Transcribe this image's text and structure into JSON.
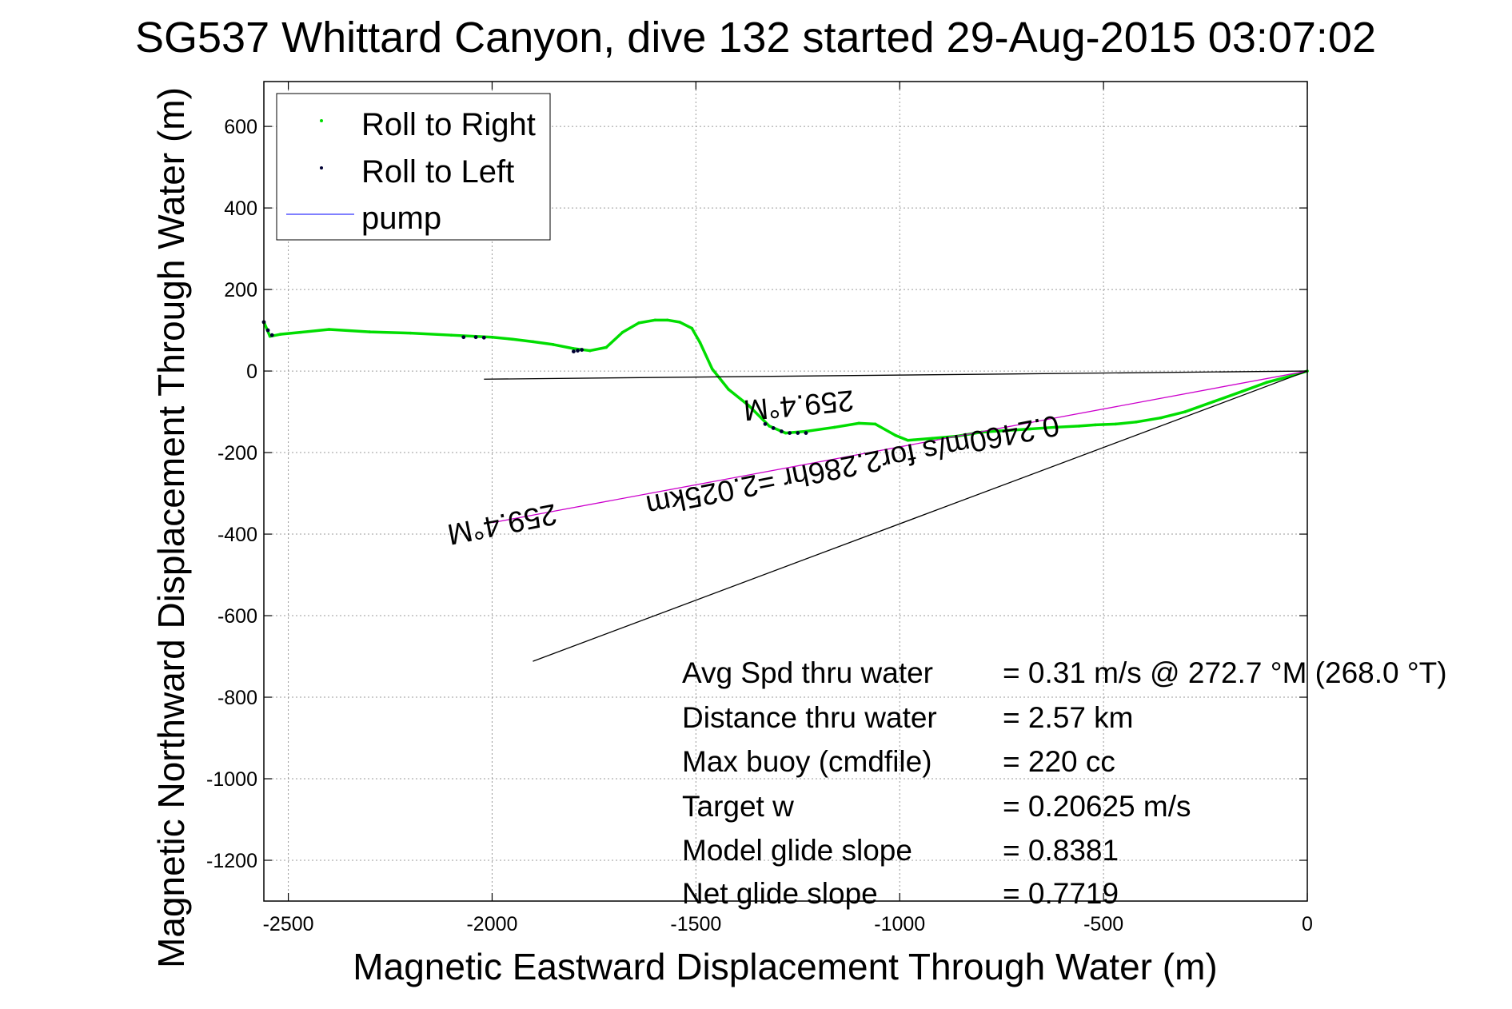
{
  "chart_data": {
    "type": "line",
    "title": "SG537 Whittard Canyon, dive 132 started 29-Aug-2015 03:07:02",
    "xlabel": "Magnetic Eastward Displacement Through Water (m)",
    "ylabel": "Magnetic Northward Displacement Through Water (m)",
    "xlim": [
      -2560,
      0
    ],
    "ylim": [
      -1300,
      710
    ],
    "xticks": [
      -2500,
      -2000,
      -1500,
      -1000,
      -500,
      0
    ],
    "yticks": [
      600,
      400,
      200,
      0,
      -200,
      -400,
      -600,
      -800,
      -1000,
      -1200
    ],
    "grid": true,
    "legend_position": "top-left",
    "series": [
      {
        "name": "Roll to Right",
        "color": "#00dd00",
        "x": [
          0,
          -40,
          -100,
          -160,
          -230,
          -300,
          -360,
          -420,
          -470,
          -520,
          -560,
          -620,
          -680,
          -740,
          -800,
          -860,
          -920,
          -980,
          -1010,
          -1060,
          -1100,
          -1160,
          -1230,
          -1280,
          -1320,
          -1370,
          -1420,
          -1460,
          -1490,
          -1510,
          -1540,
          -1570,
          -1600,
          -1640,
          -1680,
          -1720,
          -1760,
          -1800,
          -1850,
          -1900,
          -1950,
          -2000,
          -2100,
          -2200,
          -2300,
          -2400,
          -2470,
          -2520,
          -2545,
          -2560
        ],
        "y": [
          0,
          -12,
          -28,
          -50,
          -75,
          -100,
          -115,
          -125,
          -130,
          -132,
          -135,
          -138,
          -142,
          -146,
          -150,
          -160,
          -165,
          -170,
          -158,
          -130,
          -128,
          -138,
          -148,
          -152,
          -135,
          -85,
          -45,
          5,
          70,
          105,
          120,
          125,
          125,
          118,
          95,
          58,
          50,
          55,
          65,
          72,
          78,
          83,
          88,
          93,
          96,
          102,
          95,
          90,
          85,
          120
        ]
      },
      {
        "name": "Roll to Left",
        "color": "#000033",
        "x": [
          -1330,
          -1310,
          -1290,
          -1270,
          -1250,
          -1230,
          -1800,
          -1790,
          -1780,
          -2070,
          -2040,
          -2020,
          -2560,
          -2550,
          -2540
        ],
        "y": [
          -130,
          -140,
          -148,
          -152,
          -152,
          -152,
          48,
          50,
          52,
          83,
          83,
          82,
          120,
          100,
          88
        ]
      },
      {
        "name": "pump",
        "color": "#0000ff",
        "x": [],
        "y": []
      }
    ],
    "reference_lines": [
      {
        "color": "#000000",
        "x": [
          0,
          -2020
        ],
        "y": [
          0,
          -20
        ]
      },
      {
        "color": "#cc00cc",
        "x": [
          0,
          -2000
        ],
        "y": [
          0,
          -372
        ]
      },
      {
        "color": "#000000",
        "x": [
          0,
          -1900
        ],
        "y": [
          0,
          -712
        ]
      }
    ],
    "annotations": [
      {
        "text": "259.4°M",
        "x": -1250,
        "y": -60
      },
      {
        "text": "0.2460m/s for2.286hr =2.025km",
        "x": -1120,
        "y": -208
      },
      {
        "text": "259.4°M",
        "x": -1980,
        "y": -352
      }
    ],
    "stats": [
      {
        "label": "Avg Spd thru water",
        "value": "=  0.31 m/s @ 272.7 °M (268.0 °T)"
      },
      {
        "label": "Distance thru water",
        "value": "=  2.57 km"
      },
      {
        "label": "Max buoy (cmdfile)",
        "value": "= 220 cc"
      },
      {
        "label": "Target w",
        "value": "= 0.20625 m/s"
      },
      {
        "label": "Model glide slope",
        "value": "= 0.8381"
      },
      {
        "label": "Net glide slope",
        "value": "= 0.7719"
      }
    ]
  }
}
